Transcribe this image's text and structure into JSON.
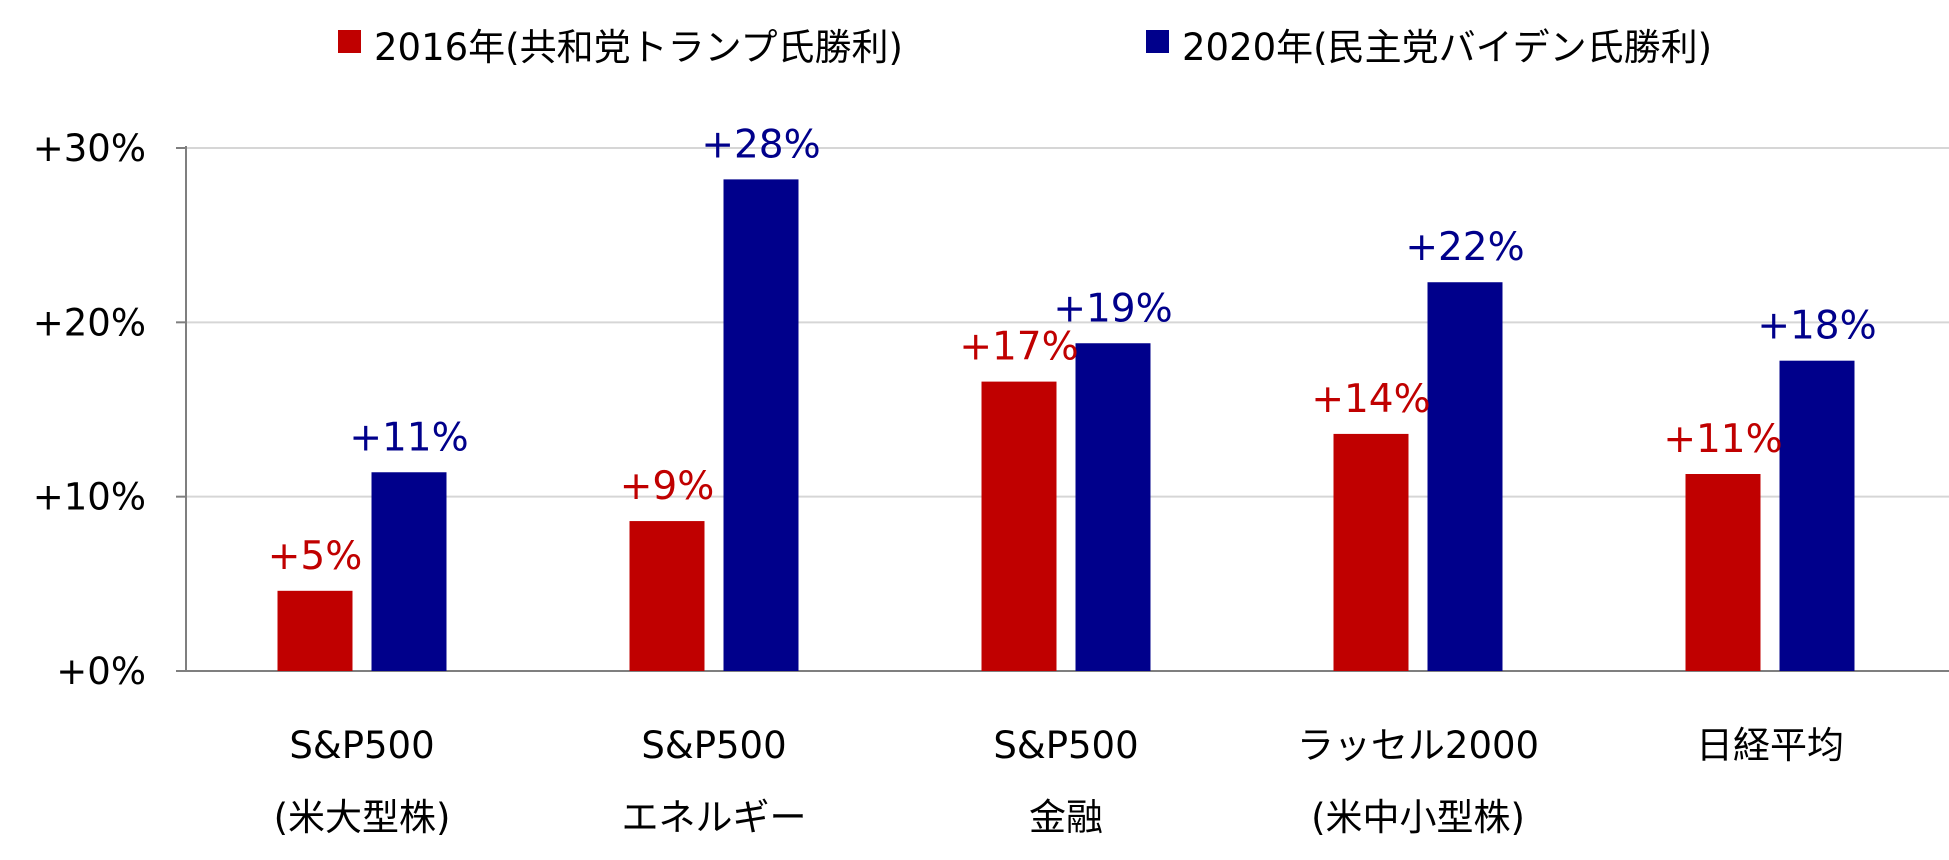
{
  "chart_data": {
    "type": "bar",
    "title": "",
    "xlabel": "",
    "ylabel": "",
    "ylim": [
      0,
      30
    ],
    "yticks": [
      0,
      10,
      20,
      30
    ],
    "ytick_labels": [
      "+0%",
      "+10%",
      "+20%",
      "+30%"
    ],
    "grid": true,
    "legend_position": "top-center",
    "categories": [
      [
        "S&P500",
        "(米大型株)"
      ],
      [
        "S&P500",
        "エネルギー"
      ],
      [
        "S&P500",
        "金融"
      ],
      [
        "ラッセル2000",
        "(米中小型株)"
      ],
      [
        "日経平均"
      ]
    ],
    "series": [
      {
        "name": "2016年(共和党トランプ氏勝利)",
        "color": "#C00000",
        "values": [
          4.6,
          8.6,
          16.6,
          13.6,
          11.3
        ],
        "labels": [
          "+5%",
          "+9%",
          "+17%",
          "+14%",
          "+11%"
        ]
      },
      {
        "name": "2020年(民主党バイデン氏勝利)",
        "color": "#00008B",
        "values": [
          11.4,
          28.2,
          18.8,
          22.3,
          17.8
        ],
        "labels": [
          "+11%",
          "+28%",
          "+19%",
          "+22%",
          "+18%"
        ]
      }
    ]
  }
}
